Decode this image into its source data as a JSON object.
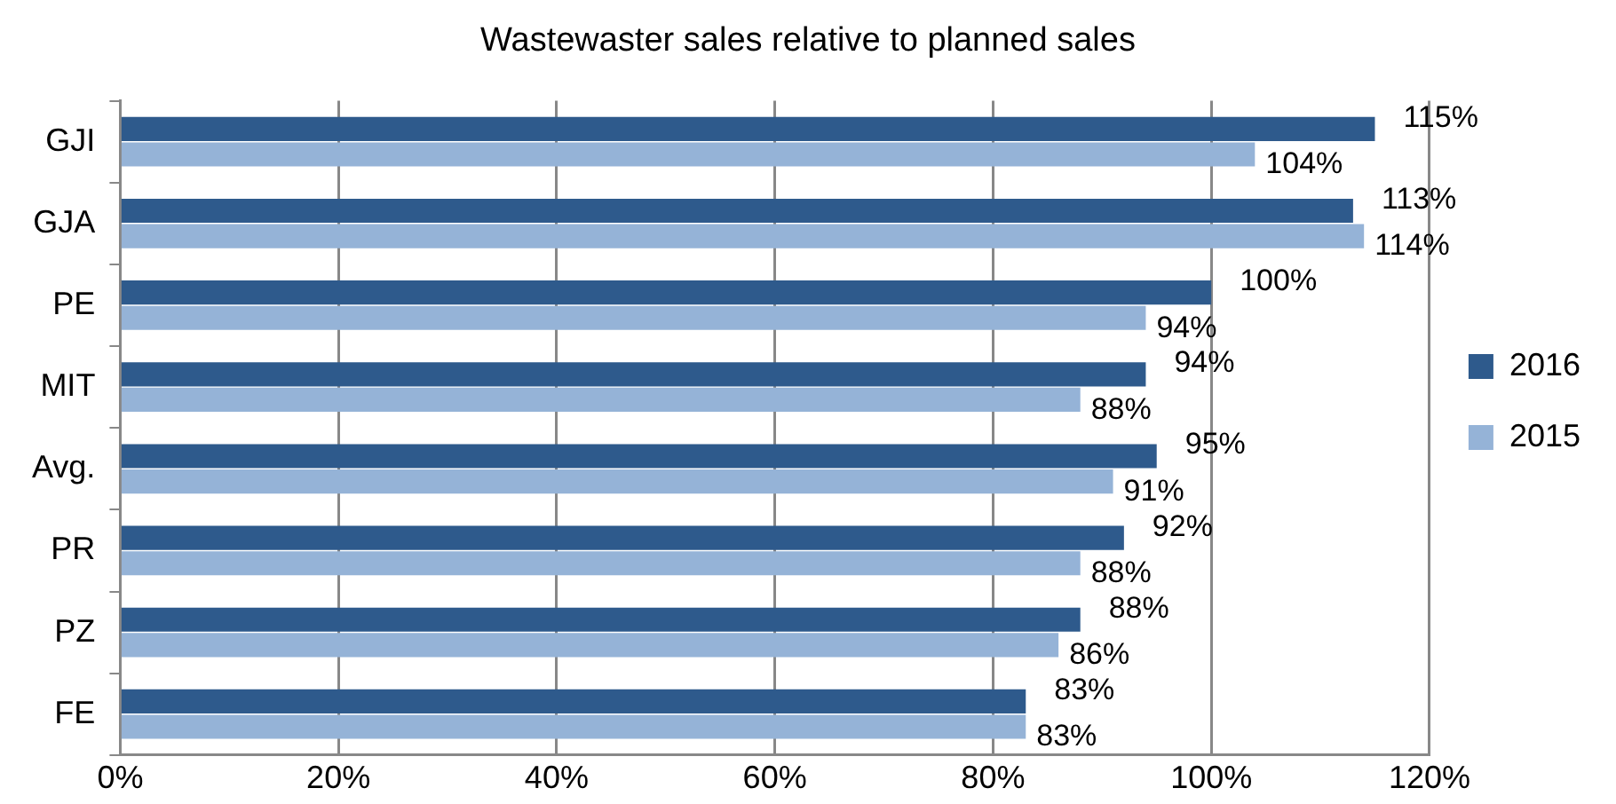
{
  "chart_data": {
    "type": "bar",
    "orientation": "horizontal",
    "title": "Wastewaster sales relative to planned sales",
    "categories": [
      "GJI",
      "GJA",
      "PE",
      "MIT",
      "Avg.",
      "PR",
      "PZ",
      "FE"
    ],
    "series": [
      {
        "name": "2016",
        "color": "#2e5a8c",
        "values": [
          115,
          113,
          100,
          94,
          95,
          92,
          88,
          83
        ],
        "value_labels": [
          "115%",
          "113%",
          "100%",
          "94%",
          "95%",
          "92%",
          "88%",
          "83%"
        ]
      },
      {
        "name": "2015",
        "color": "#95b3d7",
        "values": [
          104,
          114,
          94,
          88,
          91,
          88,
          86,
          83
        ],
        "value_labels": [
          "104%",
          "114%",
          "94%",
          "88%",
          "91%",
          "88%",
          "86%",
          "83%"
        ]
      }
    ],
    "xlim": [
      0,
      120
    ],
    "xticks": [
      {
        "value": 0,
        "label": "0%"
      },
      {
        "value": 20,
        "label": "20%"
      },
      {
        "value": 40,
        "label": "40%"
      },
      {
        "value": 60,
        "label": "60%"
      },
      {
        "value": 80,
        "label": "80%"
      },
      {
        "value": 100,
        "label": "100%"
      },
      {
        "value": 120,
        "label": "120%"
      }
    ],
    "grid": "x",
    "legend": "right"
  }
}
